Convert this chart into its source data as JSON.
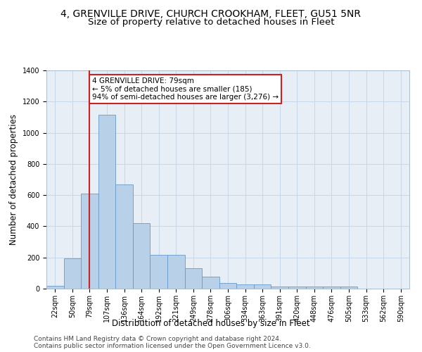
{
  "title": "4, GRENVILLE DRIVE, CHURCH CROOKHAM, FLEET, GU51 5NR",
  "subtitle": "Size of property relative to detached houses in Fleet",
  "xlabel": "Distribution of detached houses by size in Fleet",
  "ylabel": "Number of detached properties",
  "bin_labels": [
    "22sqm",
    "50sqm",
    "79sqm",
    "107sqm",
    "136sqm",
    "164sqm",
    "192sqm",
    "221sqm",
    "249sqm",
    "278sqm",
    "306sqm",
    "334sqm",
    "363sqm",
    "391sqm",
    "420sqm",
    "448sqm",
    "476sqm",
    "505sqm",
    "533sqm",
    "562sqm",
    "590sqm"
  ],
  "bar_values": [
    20,
    195,
    610,
    1115,
    670,
    420,
    215,
    215,
    130,
    75,
    35,
    27,
    27,
    13,
    13,
    13,
    13,
    13,
    0,
    0,
    0
  ],
  "bar_color": "#B8D0E8",
  "bar_edge_color": "#6699CC",
  "highlight_color": "#CC2222",
  "annotation_text": "4 GRENVILLE DRIVE: 79sqm\n← 5% of detached houses are smaller (185)\n94% of semi-detached houses are larger (3,276) →",
  "annotation_box_color": "#FFFFFF",
  "annotation_box_edge": "#CC2222",
  "vline_x": 2,
  "ylim": [
    0,
    1400
  ],
  "yticks": [
    0,
    200,
    400,
    600,
    800,
    1000,
    1200,
    1400
  ],
  "footer1": "Contains HM Land Registry data © Crown copyright and database right 2024.",
  "footer2": "Contains public sector information licensed under the Open Government Licence v3.0.",
  "bg_color": "#FFFFFF",
  "plot_bg_color": "#E8EEF5",
  "grid_color": "#C8D8E8",
  "title_fontsize": 10,
  "subtitle_fontsize": 9.5,
  "axis_label_fontsize": 8.5,
  "tick_fontsize": 7,
  "annotation_fontsize": 7.5,
  "footer_fontsize": 6.5
}
